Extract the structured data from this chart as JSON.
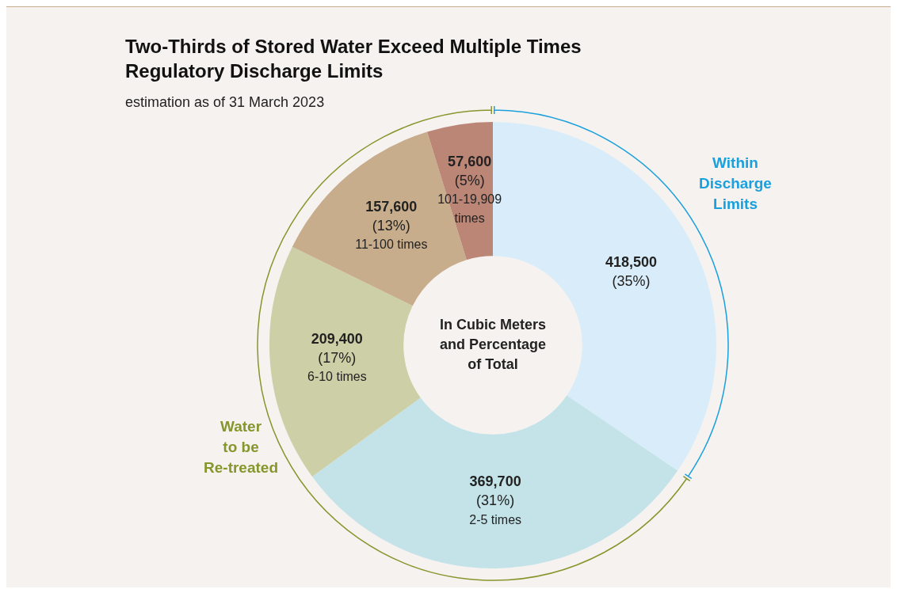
{
  "chart_data": {
    "type": "donut",
    "title": "Two-Thirds of Stored Water Exceed Multiple Times Regulatory Discharge Limits",
    "subtitle": "estimation as of 31 March 2023",
    "categories": [
      null,
      "2-5 times",
      "6-10 times",
      "11-100 times",
      "101-19,909 times"
    ],
    "values": [
      418500,
      369700,
      209400,
      157600,
      57600
    ],
    "value_labels": [
      "418,500 (35%)",
      "369,700 (31%)",
      "209,400 (17%)",
      "157,600 (13%)",
      "57,600 (5%)"
    ],
    "colors": [
      "#d8edf9",
      "#c3e3e8",
      "#cdcfa6",
      "#c8ad8c",
      "#bc8677"
    ],
    "annotations": [
      "In Cubic Meters and Percentage of Total",
      "Within Discharge Limits",
      "Water to be Re-treated"
    ],
    "legend": false
  }
}
